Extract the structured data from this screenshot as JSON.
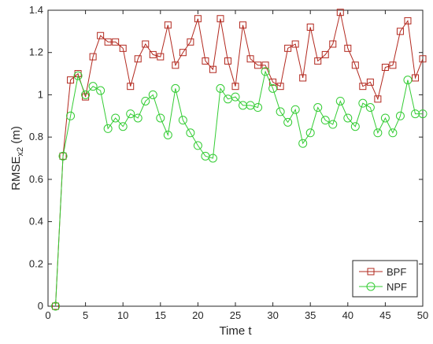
{
  "chart_data": {
    "type": "line",
    "xlabel": "Time t",
    "ylabel": "RMSE",
    "ylabel_sub": "x2",
    "ylabel_unit": " (m)",
    "xlim": [
      0,
      50
    ],
    "ylim": [
      0,
      1.4
    ],
    "xticks": [
      0,
      5,
      10,
      15,
      20,
      25,
      30,
      35,
      40,
      45,
      50
    ],
    "yticks": [
      0,
      0.2,
      0.4,
      0.6,
      0.8,
      1,
      1.2,
      1.4
    ],
    "grid": false,
    "legend_position": "bottom-right",
    "x": [
      1,
      2,
      3,
      4,
      5,
      6,
      7,
      8,
      9,
      10,
      11,
      12,
      13,
      14,
      15,
      16,
      17,
      18,
      19,
      20,
      21,
      22,
      23,
      24,
      25,
      26,
      27,
      28,
      29,
      30,
      31,
      32,
      33,
      34,
      35,
      36,
      37,
      38,
      39,
      40,
      41,
      42,
      43,
      44,
      45,
      46,
      47,
      48,
      49,
      50
    ],
    "series": [
      {
        "name": "BPF",
        "color": "#b2281e",
        "marker": "square",
        "values": [
          0,
          0.71,
          1.07,
          1.1,
          0.99,
          1.18,
          1.28,
          1.25,
          1.25,
          1.22,
          1.04,
          1.17,
          1.24,
          1.19,
          1.18,
          1.33,
          1.14,
          1.2,
          1.25,
          1.36,
          1.16,
          1.12,
          1.36,
          1.16,
          1.04,
          1.33,
          1.17,
          1.14,
          1.14,
          1.06,
          1.04,
          1.22,
          1.24,
          1.08,
          1.32,
          1.16,
          1.19,
          1.24,
          1.39,
          1.22,
          1.14,
          1.04,
          1.06,
          0.98,
          1.13,
          1.14,
          1.3,
          1.35,
          1.08,
          1.17
        ]
      },
      {
        "name": "NPF",
        "color": "#33cc33",
        "marker": "circle",
        "values": [
          0,
          0.71,
          0.9,
          1.09,
          1.0,
          1.04,
          1.02,
          0.84,
          0.89,
          0.85,
          0.91,
          0.89,
          0.97,
          1.0,
          0.89,
          0.81,
          1.03,
          0.88,
          0.82,
          0.76,
          0.71,
          0.7,
          1.03,
          0.98,
          0.99,
          0.95,
          0.95,
          0.94,
          1.11,
          1.03,
          0.92,
          0.87,
          0.93,
          0.77,
          0.82,
          0.94,
          0.88,
          0.86,
          0.97,
          0.89,
          0.85,
          0.96,
          0.94,
          0.82,
          0.89,
          0.82,
          0.9,
          1.07,
          0.91,
          0.91
        ]
      }
    ]
  }
}
